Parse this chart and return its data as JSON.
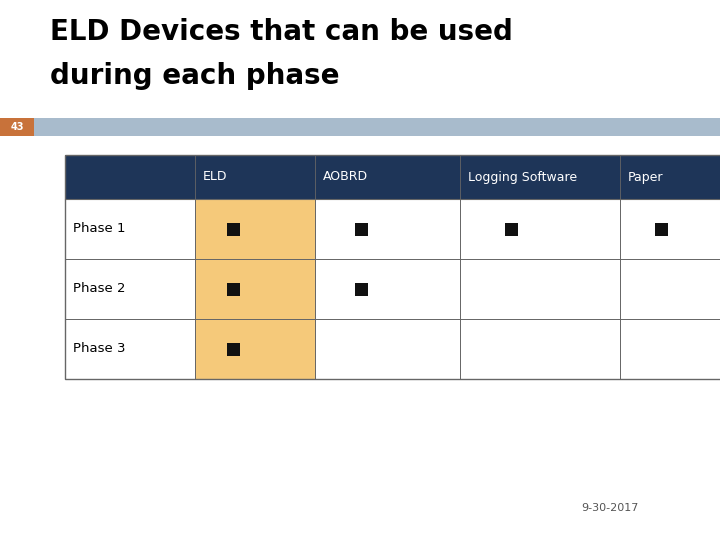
{
  "title_line1": "ELD Devices that can be used",
  "title_line2": "during each phase",
  "slide_number": "43",
  "date_label": "9-30-2017",
  "background_color": "#ffffff",
  "title_color": "#000000",
  "title_fontsize": 20,
  "header_bg_color": "#1e3558",
  "header_text_color": "#ffffff",
  "row_label_bg_color": "#ffffff",
  "eld_col_bg_color": "#f5c97a",
  "other_col_bg_color": "#ffffff",
  "divider_blue_color": "#a8bbcc",
  "divider_orange_bg": "#c8723a",
  "border_color": "#666666",
  "columns": [
    "",
    "ELD",
    "AOBRD",
    "Logging Software",
    "Paper"
  ],
  "rows": [
    "Phase 1",
    "Phase 2",
    "Phase 3"
  ],
  "checkmarks": [
    [
      true,
      true,
      true,
      true
    ],
    [
      true,
      true,
      false,
      false
    ],
    [
      true,
      false,
      false,
      false
    ]
  ],
  "fig_width": 7.2,
  "fig_height": 5.4,
  "dpi": 100
}
